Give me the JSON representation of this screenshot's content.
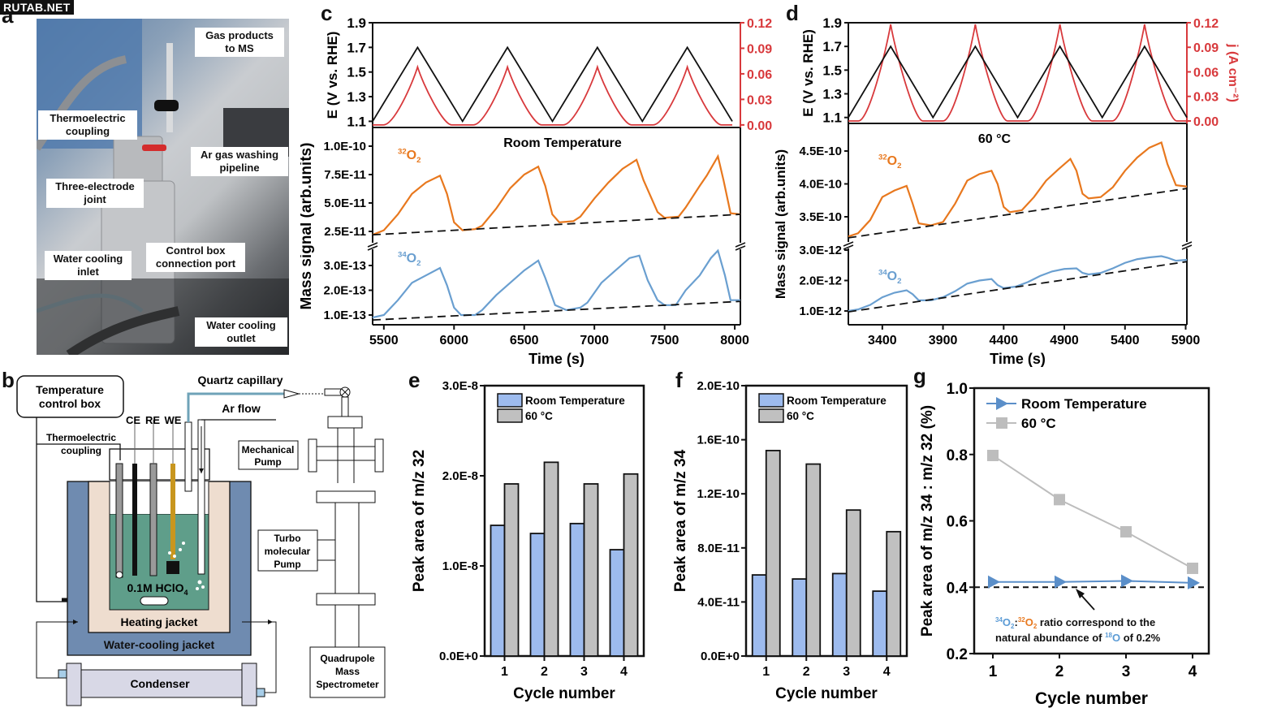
{
  "watermark": "RUTAB.NET",
  "panel_labels": {
    "a": "a",
    "b": "b",
    "c": "c",
    "d": "d",
    "e": "e",
    "f": "f",
    "g": "g"
  },
  "panel_a": {
    "callouts": {
      "gas_products": "Gas products to MS",
      "thermoelectric": "Thermoelectric coupling",
      "ar_gas": "Ar gas washing pipeline",
      "three_electrode": "Three-electrode joint",
      "control_box": "Control box connection port",
      "water_inlet": "Water cooling inlet",
      "water_outlet": "Water cooling outlet"
    }
  },
  "panel_b": {
    "temperature_control_box": "Temperature control box",
    "thermoelectric_coupling": "Thermoelectric coupling",
    "ce": "CE",
    "re": "RE",
    "we": "WE",
    "quartz_capillary": "Quartz capillary",
    "ar_flow": "Ar flow",
    "electrolyte": "0.1M HClO",
    "electrolyte_sub": "4",
    "heating_jacket": "Heating jacket",
    "water_cooling_jacket": "Water-cooling jacket",
    "condenser": "Condenser",
    "mechanical_pump": "Mechanical Pump",
    "turbo_pump": "Turbo molecular Pump",
    "quadrupole": "Quadrupole Mass Spectrometer",
    "colors": {
      "water_jacket": "#6f8bb0",
      "heating": "#eeddcf",
      "electrolyte": "#5f9e8a",
      "we_rod": "#c8961e",
      "condenser": "#d8d8e6"
    }
  },
  "chart_data": [
    {
      "id": "c",
      "type": "line",
      "title": "Room Temperature",
      "top": {
        "ylabel_left": "E (V vs. RHE)",
        "ylabel_right": "j (A cm⁻²)",
        "yticks_left": [
          "1.1",
          "1.3",
          "1.5",
          "1.7",
          "1.9"
        ],
        "yticks_right": [
          "0.00",
          "0.03",
          "0.06",
          "0.09",
          "0.12"
        ],
        "ylim_left": [
          1.05,
          1.9
        ],
        "ylim_right": [
          -0.003,
          0.12
        ],
        "E_profile": {
          "min": 1.1,
          "max": 1.7,
          "cycles": 4
        },
        "j_peak": 0.068
      },
      "bottom": {
        "ylabel": "Mass signal (arb.units)",
        "xlabel": "Time (s)",
        "xticks": [
          "5500",
          "6000",
          "6500",
          "7000",
          "7500",
          "8000"
        ],
        "xlim": [
          5420,
          8040
        ],
        "upper_yticks": [
          "2.5E-11",
          "5.0E-11",
          "7.5E-11",
          "1.0E-10"
        ],
        "lower_yticks": [
          "1.0E-13",
          "2.0E-13",
          "3.0E-13"
        ],
        "series": [
          {
            "name": "32O2",
            "label_sup": "32",
            "label_main": "O",
            "label_sub": "2",
            "color": "#e8781e",
            "unit": "1E-11",
            "points": [
              [
                5420,
                2.2
              ],
              [
                5500,
                2.6
              ],
              [
                5600,
                4.0
              ],
              [
                5700,
                5.8
              ],
              [
                5800,
                6.8
              ],
              [
                5900,
                7.4
              ],
              [
                5950,
                5.8
              ],
              [
                6000,
                3.3
              ],
              [
                6060,
                2.6
              ],
              [
                6150,
                2.7
              ],
              [
                6200,
                3.0
              ],
              [
                6300,
                4.5
              ],
              [
                6400,
                6.3
              ],
              [
                6500,
                7.5
              ],
              [
                6600,
                8.2
              ],
              [
                6650,
                6.5
              ],
              [
                6700,
                4.0
              ],
              [
                6750,
                3.3
              ],
              [
                6850,
                3.4
              ],
              [
                6900,
                3.8
              ],
              [
                7000,
                5.4
              ],
              [
                7100,
                6.8
              ],
              [
                7200,
                8.0
              ],
              [
                7300,
                8.8
              ],
              [
                7350,
                7.0
              ],
              [
                7450,
                4.2
              ],
              [
                7500,
                3.7
              ],
              [
                7600,
                3.8
              ],
              [
                7650,
                4.6
              ],
              [
                7750,
                6.5
              ],
              [
                7800,
                7.4
              ],
              [
                7880,
                9.1
              ],
              [
                7920,
                7.0
              ],
              [
                7970,
                4.1
              ],
              [
                8040,
                4.0
              ]
            ],
            "baseline": [
              [
                5420,
                2.2
              ],
              [
                8040,
                4.0
              ]
            ]
          },
          {
            "name": "34O2",
            "label_sup": "34",
            "label_main": "O",
            "label_sub": "2",
            "color": "#6a9fd0",
            "unit": "1E-13",
            "points": [
              [
                5420,
                0.9
              ],
              [
                5500,
                1.0
              ],
              [
                5600,
                1.6
              ],
              [
                5700,
                2.3
              ],
              [
                5800,
                2.6
              ],
              [
                5900,
                2.9
              ],
              [
                5950,
                2.2
              ],
              [
                6000,
                1.3
              ],
              [
                6050,
                1.0
              ],
              [
                6150,
                1.0
              ],
              [
                6200,
                1.2
              ],
              [
                6300,
                1.8
              ],
              [
                6400,
                2.3
              ],
              [
                6500,
                2.8
              ],
              [
                6600,
                3.2
              ],
              [
                6650,
                2.5
              ],
              [
                6720,
                1.4
              ],
              [
                6800,
                1.2
              ],
              [
                6900,
                1.3
              ],
              [
                6950,
                1.5
              ],
              [
                7050,
                2.3
              ],
              [
                7150,
                2.8
              ],
              [
                7250,
                3.3
              ],
              [
                7320,
                3.4
              ],
              [
                7380,
                2.4
              ],
              [
                7450,
                1.6
              ],
              [
                7500,
                1.4
              ],
              [
                7580,
                1.4
              ],
              [
                7650,
                2.0
              ],
              [
                7750,
                2.6
              ],
              [
                7830,
                3.3
              ],
              [
                7880,
                3.6
              ],
              [
                7930,
                2.6
              ],
              [
                7970,
                1.6
              ],
              [
                8040,
                1.6
              ]
            ],
            "baseline": [
              [
                5420,
                0.8
              ],
              [
                8040,
                1.55
              ]
            ]
          }
        ]
      }
    },
    {
      "id": "d",
      "type": "line",
      "title": "60 °C",
      "top": {
        "ylabel_left": "E (V vs. RHE)",
        "ylabel_right": "j (A cm⁻²)",
        "yticks_left": [
          "1.1",
          "1.3",
          "1.5",
          "1.7",
          "1.9"
        ],
        "yticks_right": [
          "0.00",
          "0.03",
          "0.06",
          "0.09",
          "0.12"
        ],
        "ylim_left": [
          1.05,
          1.9
        ],
        "ylim_right": [
          -0.003,
          0.12
        ],
        "E_profile": {
          "min": 1.1,
          "max": 1.7,
          "cycles": 4
        },
        "j_peak": 0.118
      },
      "bottom": {
        "ylabel": "Mass signal (arb.units)",
        "xlabel": "Time (s)",
        "xticks": [
          "3400",
          "3900",
          "4400",
          "4900",
          "5400",
          "5900"
        ],
        "xlim": [
          3120,
          5910
        ],
        "upper_yticks": [
          "3.5E-10",
          "4.0E-10",
          "4.5E-10"
        ],
        "lower_yticks": [
          "1.0E-12",
          "2.0E-12",
          "3.0E-12"
        ],
        "series": [
          {
            "name": "32O2",
            "label_sup": "32",
            "label_main": "O",
            "label_sub": "2",
            "color": "#e8781e",
            "unit": "1E-10",
            "points": [
              [
                3120,
                3.2
              ],
              [
                3200,
                3.25
              ],
              [
                3300,
                3.45
              ],
              [
                3400,
                3.8
              ],
              [
                3500,
                3.9
              ],
              [
                3600,
                3.97
              ],
              [
                3650,
                3.7
              ],
              [
                3700,
                3.4
              ],
              [
                3800,
                3.37
              ],
              [
                3900,
                3.42
              ],
              [
                4000,
                3.7
              ],
              [
                4100,
                4.05
              ],
              [
                4200,
                4.15
              ],
              [
                4300,
                4.2
              ],
              [
                4350,
                4.0
              ],
              [
                4400,
                3.65
              ],
              [
                4450,
                3.57
              ],
              [
                4550,
                3.6
              ],
              [
                4650,
                3.8
              ],
              [
                4750,
                4.05
              ],
              [
                4850,
                4.22
              ],
              [
                4950,
                4.38
              ],
              [
                5000,
                4.2
              ],
              [
                5050,
                3.85
              ],
              [
                5100,
                3.78
              ],
              [
                5200,
                3.8
              ],
              [
                5300,
                3.95
              ],
              [
                5400,
                4.2
              ],
              [
                5500,
                4.4
              ],
              [
                5600,
                4.55
              ],
              [
                5700,
                4.63
              ],
              [
                5750,
                4.3
              ],
              [
                5820,
                3.98
              ],
              [
                5910,
                3.96
              ]
            ],
            "baseline": [
              [
                3120,
                3.18
              ],
              [
                5910,
                3.93
              ]
            ]
          },
          {
            "name": "34O2",
            "label_sup": "34",
            "label_main": "O",
            "label_sub": "2",
            "color": "#6a9fd0",
            "unit": "1E-12",
            "points": [
              [
                3120,
                1.0
              ],
              [
                3200,
                1.05
              ],
              [
                3300,
                1.2
              ],
              [
                3400,
                1.45
              ],
              [
                3500,
                1.6
              ],
              [
                3600,
                1.68
              ],
              [
                3650,
                1.55
              ],
              [
                3700,
                1.35
              ],
              [
                3800,
                1.35
              ],
              [
                3900,
                1.45
              ],
              [
                4000,
                1.65
              ],
              [
                4100,
                1.9
              ],
              [
                4200,
                2.0
              ],
              [
                4300,
                2.05
              ],
              [
                4350,
                1.85
              ],
              [
                4400,
                1.75
              ],
              [
                4500,
                1.8
              ],
              [
                4600,
                1.95
              ],
              [
                4700,
                2.15
              ],
              [
                4800,
                2.3
              ],
              [
                4900,
                2.38
              ],
              [
                5000,
                2.4
              ],
              [
                5050,
                2.25
              ],
              [
                5100,
                2.2
              ],
              [
                5200,
                2.25
              ],
              [
                5300,
                2.4
              ],
              [
                5400,
                2.58
              ],
              [
                5500,
                2.7
              ],
              [
                5600,
                2.76
              ],
              [
                5700,
                2.8
              ],
              [
                5750,
                2.75
              ],
              [
                5820,
                2.65
              ],
              [
                5910,
                2.68
              ]
            ],
            "baseline": [
              [
                3120,
                0.97
              ],
              [
                5910,
                2.62
              ]
            ]
          }
        ]
      }
    },
    {
      "id": "e",
      "type": "bar",
      "categories": [
        "1",
        "2",
        "3",
        "4"
      ],
      "xlabel": "Cycle number",
      "ylabel": "Peak area of m/z 32",
      "ylim": [
        0,
        3e-08
      ],
      "yticks": [
        "0.0E+0",
        "1.0E-8",
        "2.0E-8",
        "3.0E-8"
      ],
      "series": [
        {
          "name": "Room Temperature",
          "color": "#9dbbee",
          "values": [
            1.45e-08,
            1.36e-08,
            1.47e-08,
            1.18e-08
          ]
        },
        {
          "name": "60 °C",
          "color": "#c0c0c0",
          "values": [
            1.91e-08,
            2.15e-08,
            1.91e-08,
            2.02e-08
          ]
        }
      ],
      "legend": "top-left"
    },
    {
      "id": "f",
      "type": "bar",
      "categories": [
        "1",
        "2",
        "3",
        "4"
      ],
      "xlabel": "Cycle number",
      "ylabel": "Peak area of m/z 34",
      "ylim": [
        0,
        2e-10
      ],
      "yticks": [
        "0.0E+0",
        "4.0E-11",
        "8.0E-11",
        "1.2E-10",
        "1.6E-10",
        "2.0E-10"
      ],
      "series": [
        {
          "name": "Room Temperature",
          "color": "#9dbbee",
          "values": [
            6e-11,
            5.7e-11,
            6.1e-11,
            4.8e-11
          ]
        },
        {
          "name": "60 °C",
          "color": "#c0c0c0",
          "values": [
            1.52e-10,
            1.42e-10,
            1.08e-10,
            9.2e-11
          ]
        }
      ],
      "legend": "top-left"
    },
    {
      "id": "g",
      "type": "line",
      "categories": [
        "1",
        "2",
        "3",
        "4"
      ],
      "xlabel": "Cycle number",
      "ylabel": "Peak area of m/z 34 : m/z  32 (%)",
      "ylim": [
        0.2,
        1.0
      ],
      "yticks": [
        "0.2",
        "0.4",
        "0.6",
        "0.8",
        "1.0"
      ],
      "series": [
        {
          "name": "Room Temperature",
          "color": "#5b8fc9",
          "marker": "triangle-right",
          "values": [
            0.416,
            0.416,
            0.419,
            0.413
          ]
        },
        {
          "name": "60 °C",
          "color": "#bdbdbd",
          "marker": "square",
          "values": [
            0.797,
            0.664,
            0.567,
            0.457
          ]
        }
      ],
      "reference_line": {
        "value": 0.4,
        "style": "dashed"
      },
      "annotation": {
        "line1_a_sup": "34",
        "line1_a": "O",
        "line1_a_sub": "2",
        "colon": ":",
        "line1_b_sup": "32",
        "line1_b": "O",
        "line1_b_sub": "2",
        "line1_rest": " ratio correspond to the",
        "line2_pre": "natural abundance of ",
        "line2_sup": "18",
        "line2_iso": "O",
        "line2_post": " of 0.2%",
        "color_34": "#5b9bd5",
        "color_32": "#e8781e"
      },
      "legend": "top-left"
    }
  ]
}
